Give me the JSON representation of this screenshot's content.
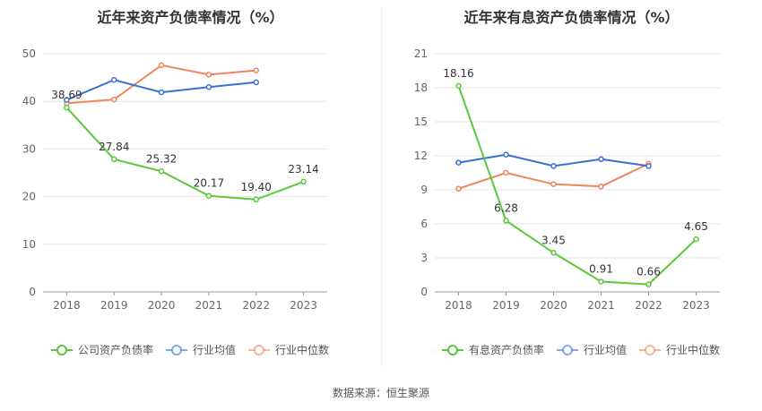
{
  "charts": [
    {
      "title": "近年来资产负债率情况（%）",
      "chart_data": {
        "type": "line",
        "categories": [
          "2018",
          "2019",
          "2020",
          "2021",
          "2022",
          "2023"
        ],
        "ylim": [
          0,
          50
        ],
        "yticks": [
          0,
          10,
          20,
          30,
          40,
          50
        ],
        "grid": true,
        "legend_position": "bottom",
        "series": [
          {
            "name": "公司资产负债率",
            "color": "#5ac83a",
            "values": [
              38.69,
              27.84,
              25.32,
              20.17,
              19.4,
              23.14
            ],
            "labels": [
              "38.69",
              "27.84",
              "25.32",
              "20.17",
              "19.40",
              "23.14"
            ]
          },
          {
            "name": "行业均值",
            "color": "#3a70d6",
            "values": [
              40.3,
              44.5,
              41.9,
              43.0,
              44.0,
              null
            ]
          },
          {
            "name": "行业中位数",
            "color": "#f0845c",
            "values": [
              39.6,
              40.4,
              47.6,
              45.6,
              46.5,
              null
            ]
          }
        ]
      }
    },
    {
      "title": "近年来有息资产负债率情况（%）",
      "chart_data": {
        "type": "line",
        "categories": [
          "2018",
          "2019",
          "2020",
          "2021",
          "2022",
          "2023"
        ],
        "ylim": [
          0,
          21
        ],
        "yticks": [
          0,
          3,
          6,
          9,
          12,
          15,
          18,
          21
        ],
        "grid": true,
        "legend_position": "bottom",
        "series": [
          {
            "name": "有息资产负债率",
            "color": "#5ac83a",
            "values": [
              18.16,
              6.28,
              3.45,
              0.91,
              0.66,
              4.65
            ],
            "labels": [
              "18.16",
              "6.28",
              "3.45",
              "0.91",
              "0.66",
              "4.65"
            ]
          },
          {
            "name": "行业均值",
            "color": "#3a70d6",
            "values": [
              11.4,
              12.1,
              11.1,
              11.7,
              11.1,
              null
            ]
          },
          {
            "name": "行业中位数",
            "color": "#f0845c",
            "values": [
              9.1,
              10.5,
              9.5,
              9.3,
              11.3,
              null
            ]
          }
        ]
      }
    }
  ],
  "footer": "数据来源：恒生聚源"
}
